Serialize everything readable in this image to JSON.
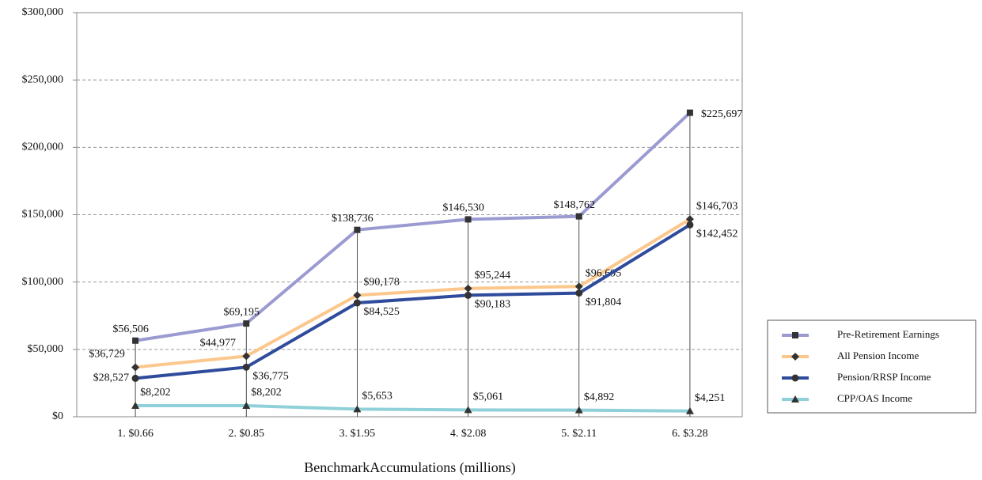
{
  "chart_data": {
    "type": "line",
    "x_label": "BenchmarkAccumulations (millions)",
    "categories": [
      "1. $0.66",
      "2. $0.85",
      "3. $1.95",
      "4. $2.08",
      "5. $2.11",
      "6. $3.28"
    ],
    "ylim": [
      0,
      300000
    ],
    "yticks": [
      {
        "value": 0,
        "label": "$0"
      },
      {
        "value": 50000,
        "label": "$50,000"
      },
      {
        "value": 100000,
        "label": "$100,000"
      },
      {
        "value": 150000,
        "label": "$150,000"
      },
      {
        "value": 200000,
        "label": "$200,000"
      },
      {
        "value": 250000,
        "label": "$250,000"
      },
      {
        "value": 300000,
        "label": "$300,000"
      }
    ],
    "grid": true,
    "legend": "right",
    "series": [
      {
        "name": "Pre-Retirement Earnings",
        "color": "#9b9bd2",
        "marker": "square",
        "values": [
          56506,
          69195,
          138736,
          146530,
          148762,
          225697
        ],
        "value_labels": [
          "$56,506",
          "$69,195",
          "$138,736",
          "$146,530",
          "$148,762",
          "$225,697"
        ]
      },
      {
        "name": "All Pension Income",
        "color": "#fcc78c",
        "marker": "diamond",
        "values": [
          36729,
          44977,
          90178,
          95244,
          96695,
          146703
        ],
        "value_labels": [
          "$36,729",
          "$44,977",
          "$90,178",
          "$95,244",
          "$96,695",
          "$146,703"
        ]
      },
      {
        "name": "Pension/RRSP Income",
        "color": "#2f4b9c",
        "marker": "circle",
        "values": [
          28527,
          36775,
          84525,
          90183,
          91804,
          142452
        ],
        "value_labels": [
          "$28,527",
          "$36,775",
          "$84,525",
          "$90,183",
          "$91,804",
          "$142,452"
        ]
      },
      {
        "name": "CPP/OAS Income",
        "color": "#8fd0d9",
        "marker": "triangle",
        "values": [
          8202,
          8202,
          5653,
          5061,
          4892,
          4251
        ],
        "value_labels": [
          "$8,202",
          "$8,202",
          "$5,653",
          "$5,061",
          "$4,892",
          "$4,251"
        ]
      }
    ]
  }
}
